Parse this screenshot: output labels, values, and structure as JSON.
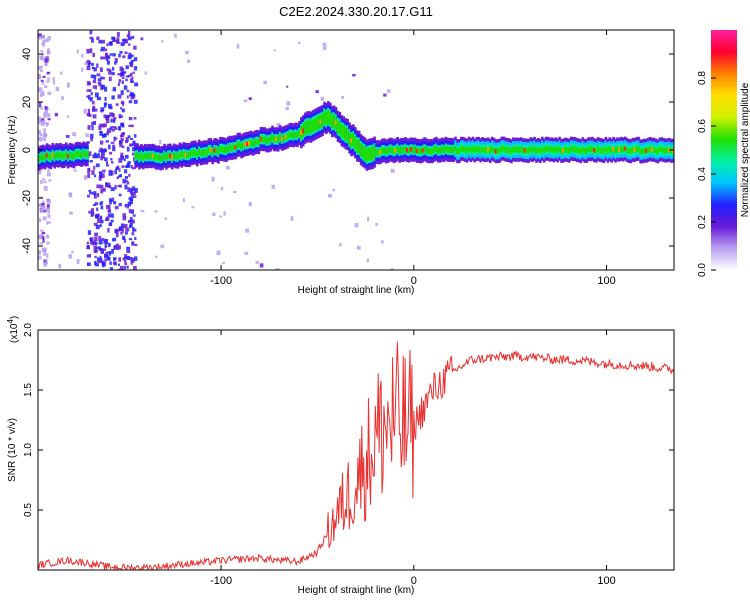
{
  "title": "C2E2.2024.330.20.17.G11",
  "chart_data": [
    {
      "type": "heatmap",
      "xlabel": "Height of straight line (km)",
      "ylabel": "Frequency (Hz)",
      "xlim": [
        -195,
        135
      ],
      "ylim": [
        -50,
        50
      ],
      "x_ticks": [
        -100,
        0,
        100
      ],
      "y_ticks": [
        -40,
        -20,
        0,
        20,
        40
      ],
      "colorbar": {
        "label": "Normalized spectral amplitude",
        "range": [
          0,
          1
        ],
        "ticks": [
          "0.0",
          "0.2",
          "0.4",
          "0.6",
          "0.8"
        ],
        "tick_values": [
          0.0,
          0.2,
          0.4,
          0.6,
          0.8
        ],
        "colors": [
          "#ffffff",
          "#b7a0f0",
          "#6a1bd8",
          "#2020ff",
          "#00c8ff",
          "#00f0a0",
          "#20e000",
          "#d0f000",
          "#ffe000",
          "#ff8000",
          "#ff0030",
          "#ff20a0"
        ]
      },
      "ridge": {
        "x": [
          -195,
          -175,
          -160,
          -150,
          -140,
          -130,
          -120,
          -110,
          -100,
          -90,
          -80,
          -70,
          -60,
          -50,
          -45,
          -40,
          -35,
          -30,
          -25,
          -20,
          -15,
          -10,
          0,
          20,
          50,
          100,
          135
        ],
        "y": [
          -3,
          -2,
          -1,
          -2,
          -3,
          -3,
          -2,
          -1,
          0,
          2,
          4,
          5,
          7,
          12,
          14,
          10,
          6,
          2,
          -2,
          -1,
          0,
          0,
          0,
          0,
          0,
          0,
          0
        ]
      }
    },
    {
      "type": "line",
      "xlabel": "Height of straight line (km)",
      "ylabel": "SNR (10 * v/v)",
      "y_exponent": "(x10",
      "y_exponent_power": "4",
      "y_exponent_close": ")",
      "xlim": [
        -195,
        135
      ],
      "ylim": [
        0,
        2.0
      ],
      "x_ticks": [
        -100,
        0,
        100
      ],
      "y_ticks": [
        "0.5",
        "1.0",
        "1.5",
        "2.0"
      ],
      "y_tick_values": [
        0.5,
        1.0,
        1.5,
        2.0
      ],
      "line_color": "#e83030",
      "series": [
        {
          "x": [
            -195,
            -180,
            -170,
            -160,
            -150,
            -140,
            -130,
            -120,
            -110,
            -100,
            -90,
            -80,
            -70,
            -60,
            -50,
            -45,
            -40,
            -35,
            -30,
            -25,
            -20,
            -15,
            -10,
            -5,
            0,
            5,
            10,
            20,
            30,
            40,
            50,
            60,
            70,
            80,
            90,
            100,
            110,
            120,
            135
          ],
          "y": [
            0.04,
            0.08,
            0.06,
            0.03,
            0.02,
            0.02,
            0.03,
            0.05,
            0.06,
            0.08,
            0.09,
            0.1,
            0.08,
            0.07,
            0.15,
            0.3,
            0.45,
            0.6,
            0.75,
            0.9,
            1.1,
            1.2,
            1.25,
            1.2,
            1.2,
            1.35,
            1.5,
            1.65,
            1.75,
            1.77,
            1.78,
            1.78,
            1.76,
            1.75,
            1.74,
            1.72,
            1.71,
            1.7,
            1.67
          ]
        }
      ]
    }
  ]
}
